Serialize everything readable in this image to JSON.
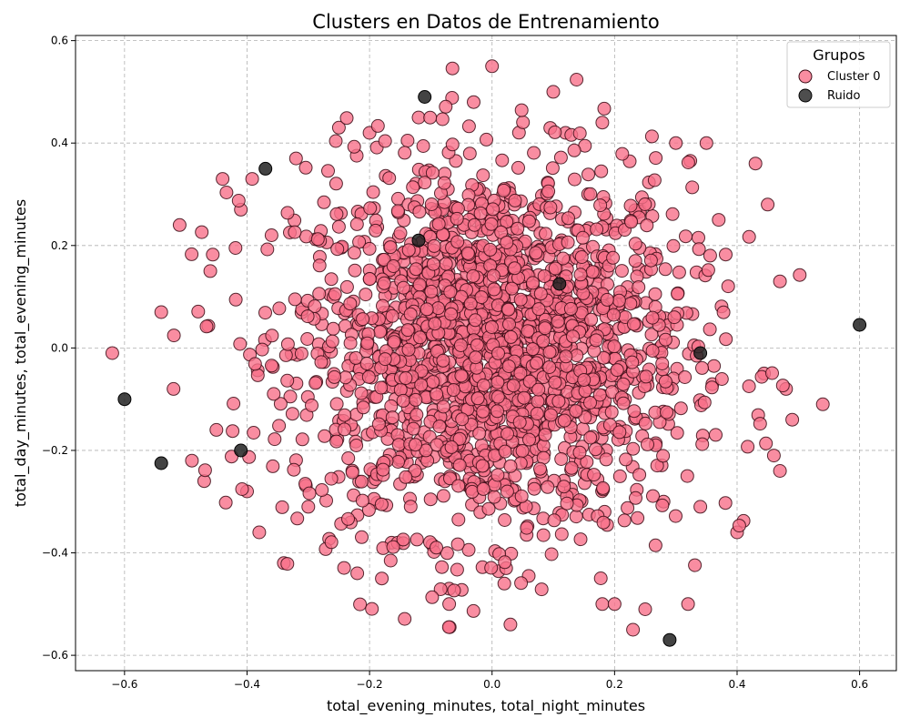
{
  "chart_data": {
    "type": "scatter",
    "title": "Clusters en Datos de Entrenamiento",
    "xlabel": "total_evening_minutes, total_night_minutes",
    "ylabel": "total_day_minutes, total_evening_minutes",
    "xlim": [
      -0.68,
      0.66
    ],
    "ylim": [
      -0.63,
      0.61
    ],
    "xticks": [
      "−0.6",
      "−0.4",
      "−0.2",
      "0.0",
      "0.2",
      "0.4",
      "0.6"
    ],
    "xtick_values": [
      -0.6,
      -0.4,
      -0.2,
      0.0,
      0.2,
      0.4,
      0.6
    ],
    "yticks": [
      "−0.6",
      "−0.4",
      "−0.2",
      "0.0",
      "0.2",
      "0.4",
      "0.6"
    ],
    "ytick_values": [
      -0.6,
      -0.4,
      -0.2,
      0.0,
      0.2,
      0.4,
      0.6
    ],
    "grid": true,
    "legend": {
      "title": "Grupos",
      "placement": "top-right",
      "entries": [
        "Cluster 0",
        "Ruido"
      ]
    },
    "series": [
      {
        "name": "Cluster 0",
        "color": "#f77189",
        "edgecolor": "#3a0a14",
        "approx_point_count": 2000,
        "center": [
          0.0,
          0.0
        ],
        "spread_std": [
          0.16,
          0.18
        ],
        "outline_points": [
          [
            -0.62,
            -0.01
          ],
          [
            -0.54,
            0.07
          ],
          [
            -0.52,
            -0.08
          ],
          [
            -0.51,
            0.24
          ],
          [
            -0.49,
            -0.22
          ],
          [
            -0.47,
            -0.26
          ],
          [
            -0.46,
            0.15
          ],
          [
            -0.45,
            -0.16
          ],
          [
            -0.44,
            0.33
          ],
          [
            -0.41,
            0.27
          ],
          [
            -0.4,
            -0.28
          ],
          [
            -0.38,
            -0.36
          ],
          [
            -0.34,
            -0.42
          ],
          [
            -0.32,
            0.37
          ],
          [
            -0.25,
            0.43
          ],
          [
            -0.22,
            -0.44
          ],
          [
            -0.2,
            0.42
          ],
          [
            -0.18,
            -0.45
          ],
          [
            -0.12,
            0.45
          ],
          [
            -0.07,
            -0.47
          ],
          [
            -0.07,
            -0.5
          ],
          [
            -0.03,
            0.48
          ],
          [
            0.0,
            0.55
          ],
          [
            0.02,
            -0.46
          ],
          [
            0.03,
            -0.54
          ],
          [
            0.1,
            0.5
          ],
          [
            0.12,
            0.42
          ],
          [
            0.18,
            0.44
          ],
          [
            0.18,
            -0.5
          ],
          [
            0.2,
            -0.5
          ],
          [
            0.23,
            -0.55
          ],
          [
            0.25,
            -0.51
          ],
          [
            0.3,
            0.4
          ],
          [
            0.32,
            -0.5
          ],
          [
            0.35,
            0.4
          ],
          [
            0.4,
            -0.36
          ],
          [
            0.43,
            0.36
          ],
          [
            0.45,
            0.28
          ],
          [
            0.46,
            -0.21
          ],
          [
            0.47,
            0.13
          ],
          [
            0.47,
            -0.24
          ],
          [
            0.48,
            -0.08
          ],
          [
            0.49,
            -0.14
          ],
          [
            0.54,
            -0.11
          ],
          [
            0.34,
            -0.31
          ],
          [
            -0.36,
            0.22
          ],
          [
            0.37,
            0.25
          ],
          [
            -0.3,
            -0.31
          ],
          [
            0.28,
            -0.3
          ],
          [
            0.0,
            0.0
          ]
        ]
      },
      {
        "name": "Ruido",
        "color": "#222222",
        "edgecolor": "#000000",
        "points": [
          [
            -0.6,
            -0.1
          ],
          [
            -0.54,
            -0.225
          ],
          [
            -0.41,
            -0.2
          ],
          [
            -0.37,
            0.35
          ],
          [
            -0.12,
            0.21
          ],
          [
            -0.11,
            0.49
          ],
          [
            0.11,
            0.125
          ],
          [
            0.34,
            -0.01
          ],
          [
            0.29,
            -0.57
          ],
          [
            0.6,
            0.045
          ]
        ]
      }
    ]
  }
}
